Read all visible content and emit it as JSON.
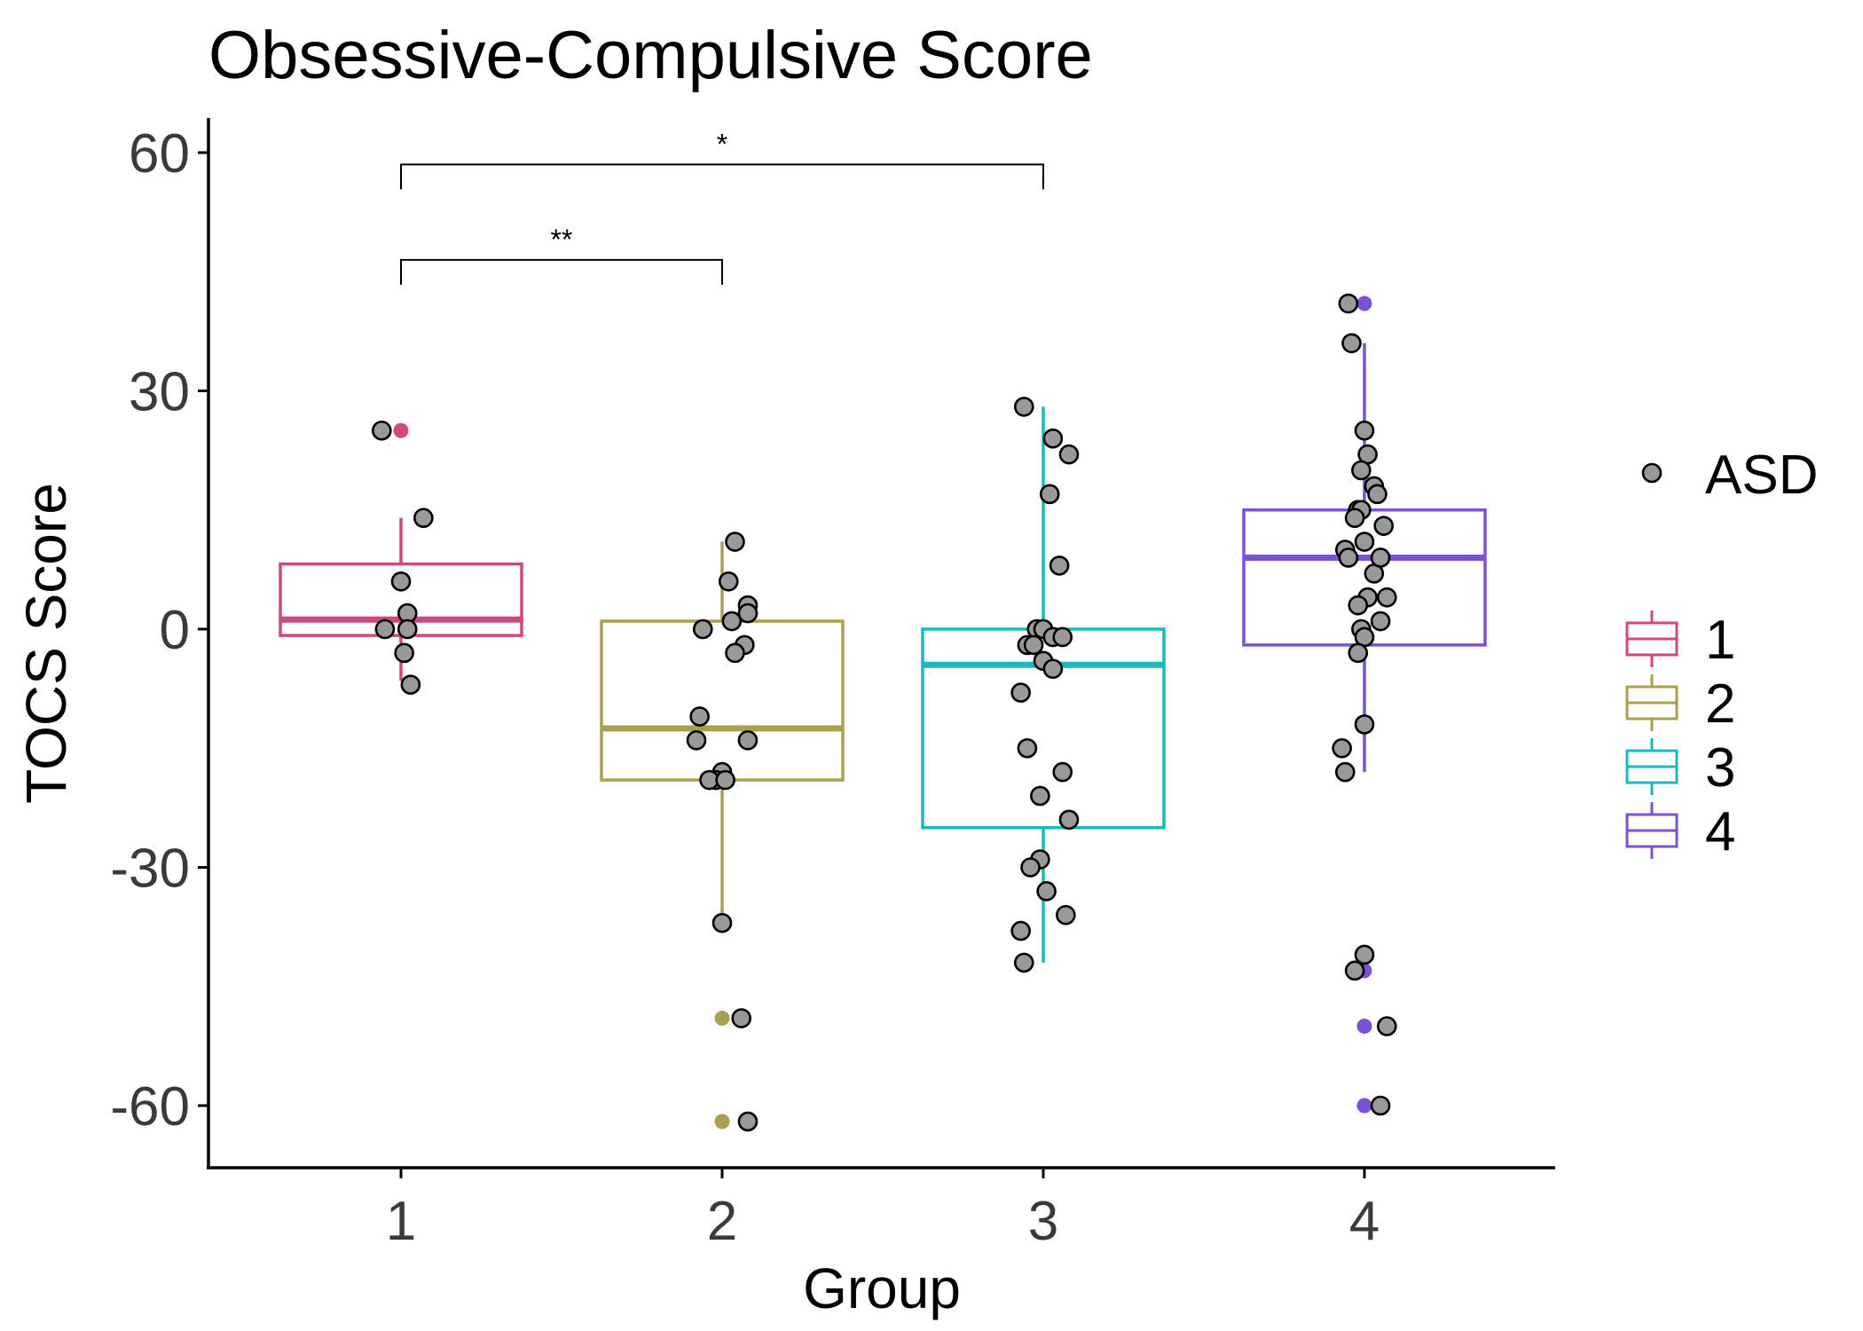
{
  "chart_data": {
    "type": "boxplot",
    "title": "Obsessive-Compulsive Score",
    "xlabel": "Group",
    "ylabel": "TOCS Score",
    "categories": [
      "1",
      "2",
      "3",
      "4"
    ],
    "ylim": [
      -67,
      65
    ],
    "y_ticks": [
      60,
      30,
      0,
      -30,
      -60
    ],
    "y_tick_labels": [
      "60",
      "30",
      "0",
      "-30",
      "-60"
    ],
    "grid": false,
    "legend_position": "right",
    "point_legend": {
      "label": "ASD",
      "color": "#999999"
    },
    "groups": [
      {
        "name": "1",
        "color": "#CE4A7E",
        "q1": -0.8,
        "median": 1.2,
        "q3": 8.2,
        "whisker_low": -6.5,
        "whisker_high": 14,
        "outliers": [
          25
        ],
        "points": [
          [
            0.94,
            25
          ],
          [
            1.07,
            14
          ],
          [
            1.0,
            6
          ],
          [
            1.02,
            2
          ],
          [
            0.95,
            0
          ],
          [
            1.02,
            0
          ],
          [
            1.01,
            -3
          ],
          [
            1.03,
            -7
          ]
        ]
      },
      {
        "name": "2",
        "color": "#A9A150",
        "q1": -19,
        "median": -12.5,
        "q3": 1,
        "whisker_low": -37,
        "whisker_high": 11,
        "outliers": [
          -49,
          -62
        ],
        "points": [
          [
            2.04,
            11
          ],
          [
            2.02,
            6
          ],
          [
            2.08,
            3
          ],
          [
            2.08,
            2
          ],
          [
            1.94,
            0
          ],
          [
            2.03,
            1
          ],
          [
            2.07,
            -2
          ],
          [
            2.04,
            -3
          ],
          [
            1.93,
            -11
          ],
          [
            1.92,
            -14
          ],
          [
            2.08,
            -14
          ],
          [
            2.0,
            -18
          ],
          [
            1.98,
            -19
          ],
          [
            1.96,
            -19
          ],
          [
            2.01,
            -19
          ],
          [
            2.0,
            -37
          ],
          [
            2.06,
            -49
          ],
          [
            2.08,
            -62
          ]
        ]
      },
      {
        "name": "3",
        "color": "#1BB8BF",
        "q1": -25,
        "median": -4.5,
        "q3": 0,
        "whisker_low": -42,
        "whisker_high": 28,
        "outliers": [],
        "points": [
          [
            2.94,
            28
          ],
          [
            3.03,
            24
          ],
          [
            3.08,
            22
          ],
          [
            3.02,
            17
          ],
          [
            3.05,
            8
          ],
          [
            2.98,
            0
          ],
          [
            3.0,
            0
          ],
          [
            3.03,
            -1
          ],
          [
            3.06,
            -1
          ],
          [
            2.95,
            -2
          ],
          [
            2.97,
            -2
          ],
          [
            3.0,
            -4
          ],
          [
            3.03,
            -5
          ],
          [
            2.93,
            -8
          ],
          [
            2.95,
            -15
          ],
          [
            3.06,
            -18
          ],
          [
            2.99,
            -21
          ],
          [
            3.08,
            -24
          ],
          [
            2.99,
            -29
          ],
          [
            2.96,
            -30
          ],
          [
            3.01,
            -33
          ],
          [
            3.07,
            -36
          ],
          [
            2.93,
            -38
          ],
          [
            2.94,
            -42
          ]
        ]
      },
      {
        "name": "4",
        "color": "#7B52D3",
        "q1": -2,
        "median": 9,
        "q3": 15,
        "whisker_low": -18,
        "whisker_high": 36,
        "outliers": [
          41,
          -43,
          -50,
          -60
        ],
        "points": [
          [
            3.95,
            41
          ],
          [
            3.96,
            36
          ],
          [
            4.0,
            25
          ],
          [
            4.01,
            22
          ],
          [
            3.99,
            20
          ],
          [
            4.03,
            18
          ],
          [
            4.04,
            17
          ],
          [
            3.98,
            15
          ],
          [
            3.99,
            15
          ],
          [
            3.97,
            14
          ],
          [
            4.06,
            13
          ],
          [
            4.0,
            11
          ],
          [
            3.94,
            10
          ],
          [
            4.03,
            7
          ],
          [
            3.95,
            9
          ],
          [
            4.05,
            9
          ],
          [
            4.07,
            4
          ],
          [
            4.01,
            4
          ],
          [
            3.98,
            3
          ],
          [
            4.05,
            1
          ],
          [
            3.99,
            0
          ],
          [
            4.0,
            -1
          ],
          [
            3.98,
            -3
          ],
          [
            4.0,
            -12
          ],
          [
            3.93,
            -15
          ],
          [
            3.94,
            -18
          ],
          [
            4.0,
            -41
          ],
          [
            3.97,
            -43
          ],
          [
            4.07,
            -50
          ],
          [
            4.05,
            -60
          ]
        ]
      }
    ],
    "significance": [
      {
        "from": "1",
        "to": "3",
        "label": "*",
        "y": 58.5
      },
      {
        "from": "1",
        "to": "2",
        "label": "**",
        "y": 46.5
      }
    ]
  }
}
